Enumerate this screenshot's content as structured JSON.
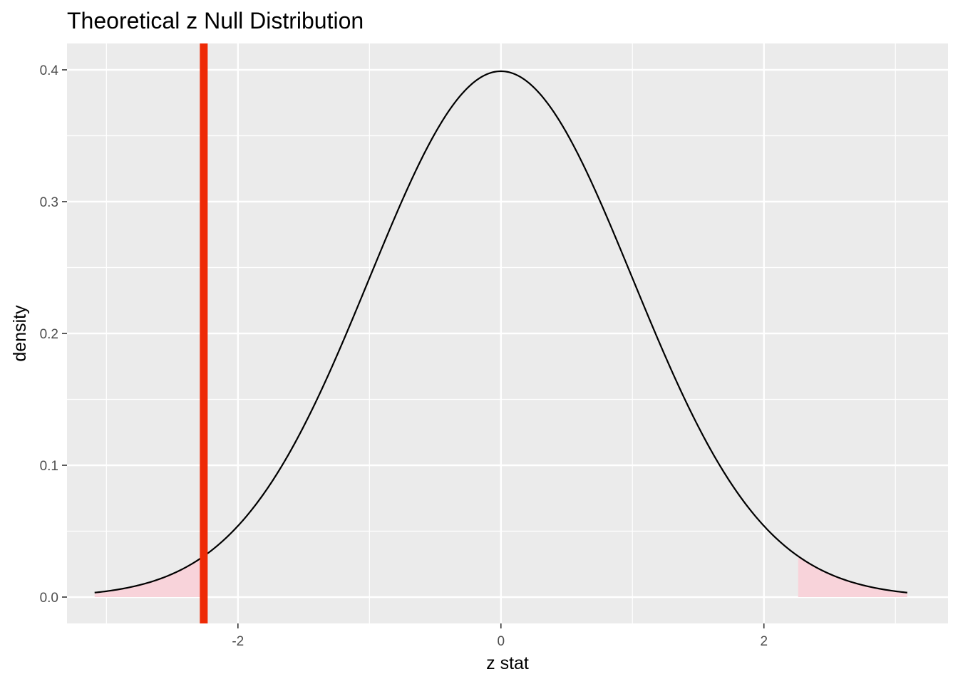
{
  "chart_data": {
    "type": "area",
    "title": "Theoretical z Null Distribution",
    "xlabel": "z stat",
    "ylabel": "density",
    "xlim": [
      -3.3,
      3.4
    ],
    "ylim": [
      -0.02,
      0.42
    ],
    "x_ticks": [
      {
        "value": -2,
        "label": "-2"
      },
      {
        "value": 0,
        "label": "0"
      },
      {
        "value": 2,
        "label": "2"
      }
    ],
    "y_ticks": [
      {
        "value": 0.0,
        "label": "0.0"
      },
      {
        "value": 0.1,
        "label": "0.1"
      },
      {
        "value": 0.2,
        "label": "0.2"
      },
      {
        "value": 0.3,
        "label": "0.3"
      },
      {
        "value": 0.4,
        "label": "0.4"
      }
    ],
    "x_minor": [
      -3,
      -1,
      1,
      3
    ],
    "y_minor": [
      0.05,
      0.15,
      0.25,
      0.35
    ],
    "grid": true,
    "series": [
      {
        "kind": "density-curve",
        "distribution": "standard normal",
        "x_range": [
          -3.09,
          3.09
        ],
        "color": "#000000"
      }
    ],
    "shaded_regions": [
      {
        "from": -3.09,
        "to": -2.26,
        "color": "#f8d3da"
      },
      {
        "from": 2.26,
        "to": 3.09,
        "color": "#f8d3da"
      }
    ],
    "vline": {
      "x": -2.26,
      "color": "#ee2a06"
    },
    "colors": {
      "panel": "#ebebeb",
      "grid": "#ffffff",
      "curve": "#000000",
      "shade": "#f8d3da",
      "vline": "#ee2a06"
    }
  }
}
